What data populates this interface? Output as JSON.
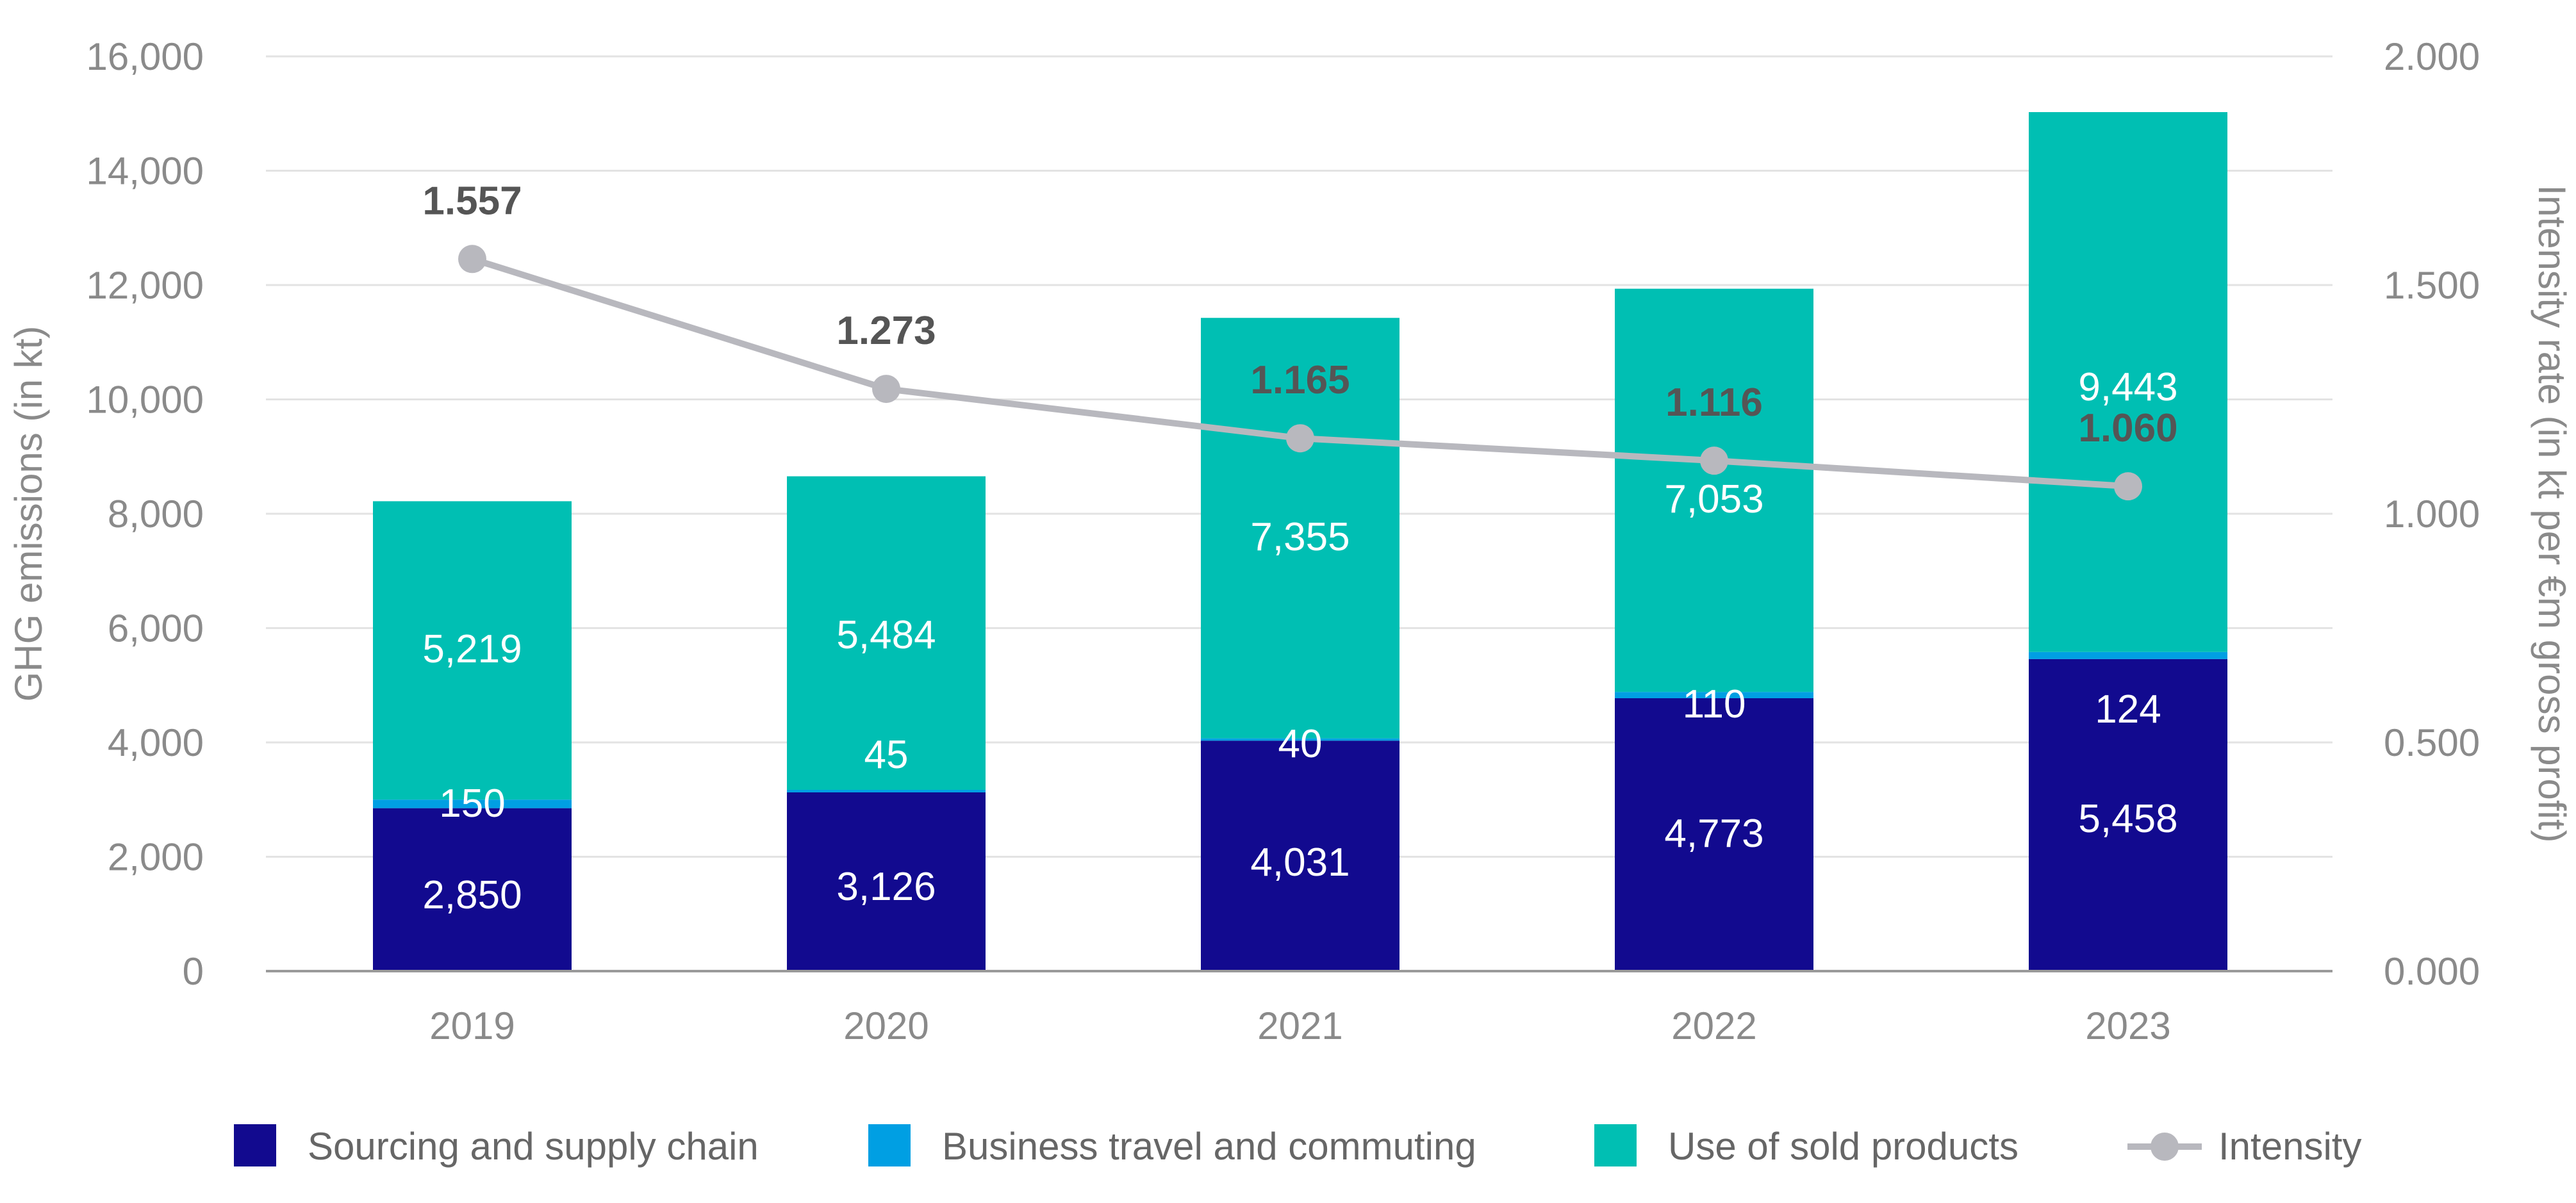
{
  "chart_data": {
    "type": "bar",
    "stacked": true,
    "categories": [
      "2019",
      "2020",
      "2021",
      "2022",
      "2023"
    ],
    "series": [
      {
        "name": "Sourcing and supply chain",
        "values": [
          2850,
          3126,
          4031,
          4773,
          5458
        ],
        "labels": [
          "2,850",
          "3,126",
          "4,031",
          "4,773",
          "5,458"
        ],
        "color": "#120a8f"
      },
      {
        "name": "Business travel and commuting",
        "values": [
          150,
          45,
          40,
          110,
          124
        ],
        "labels": [
          "150",
          "45",
          "40",
          "110",
          "124"
        ],
        "color": "#009fe3"
      },
      {
        "name": "Use of sold products",
        "values": [
          5219,
          5484,
          7355,
          7053,
          9443
        ],
        "labels": [
          "5,219",
          "5,484",
          "7,355",
          "7,053",
          "9,443"
        ],
        "color": "#00bfb3"
      }
    ],
    "line_series": {
      "name": "Intensity",
      "values": [
        1.557,
        1.273,
        1.165,
        1.116,
        1.06
      ],
      "labels": [
        "1.557",
        "1.273",
        "1.165",
        "1.116",
        "1.060"
      ],
      "color": "#b8b8be",
      "axis": "right"
    },
    "ylabel": "GHG emissions (in kt)",
    "ylim": [
      0,
      16000
    ],
    "yticks": [
      0,
      2000,
      4000,
      6000,
      8000,
      10000,
      12000,
      14000,
      16000
    ],
    "ytick_labels": [
      "0",
      "2,000",
      "4,000",
      "6,000",
      "8,000",
      "10,000",
      "12,000",
      "14,000",
      "16,000"
    ],
    "y2label": "Intensity rate (in kt per €m gross profit)",
    "y2lim": [
      0,
      2
    ],
    "y2ticks": [
      0,
      0.5,
      1,
      1.5,
      2
    ],
    "y2tick_labels": [
      "0.000",
      "0.500",
      "1.000",
      "1.500",
      "2.000"
    ],
    "grid": true,
    "legend": {
      "position": "bottom",
      "items": [
        {
          "label": "Sourcing and supply chain",
          "kind": "box",
          "color": "#120a8f"
        },
        {
          "label": "Business travel and commuting",
          "kind": "box",
          "color": "#009fe3"
        },
        {
          "label": "Use of sold products",
          "kind": "box",
          "color": "#00bfb3"
        },
        {
          "label": "Intensity",
          "kind": "line-marker",
          "color": "#b8b8be"
        }
      ]
    }
  }
}
